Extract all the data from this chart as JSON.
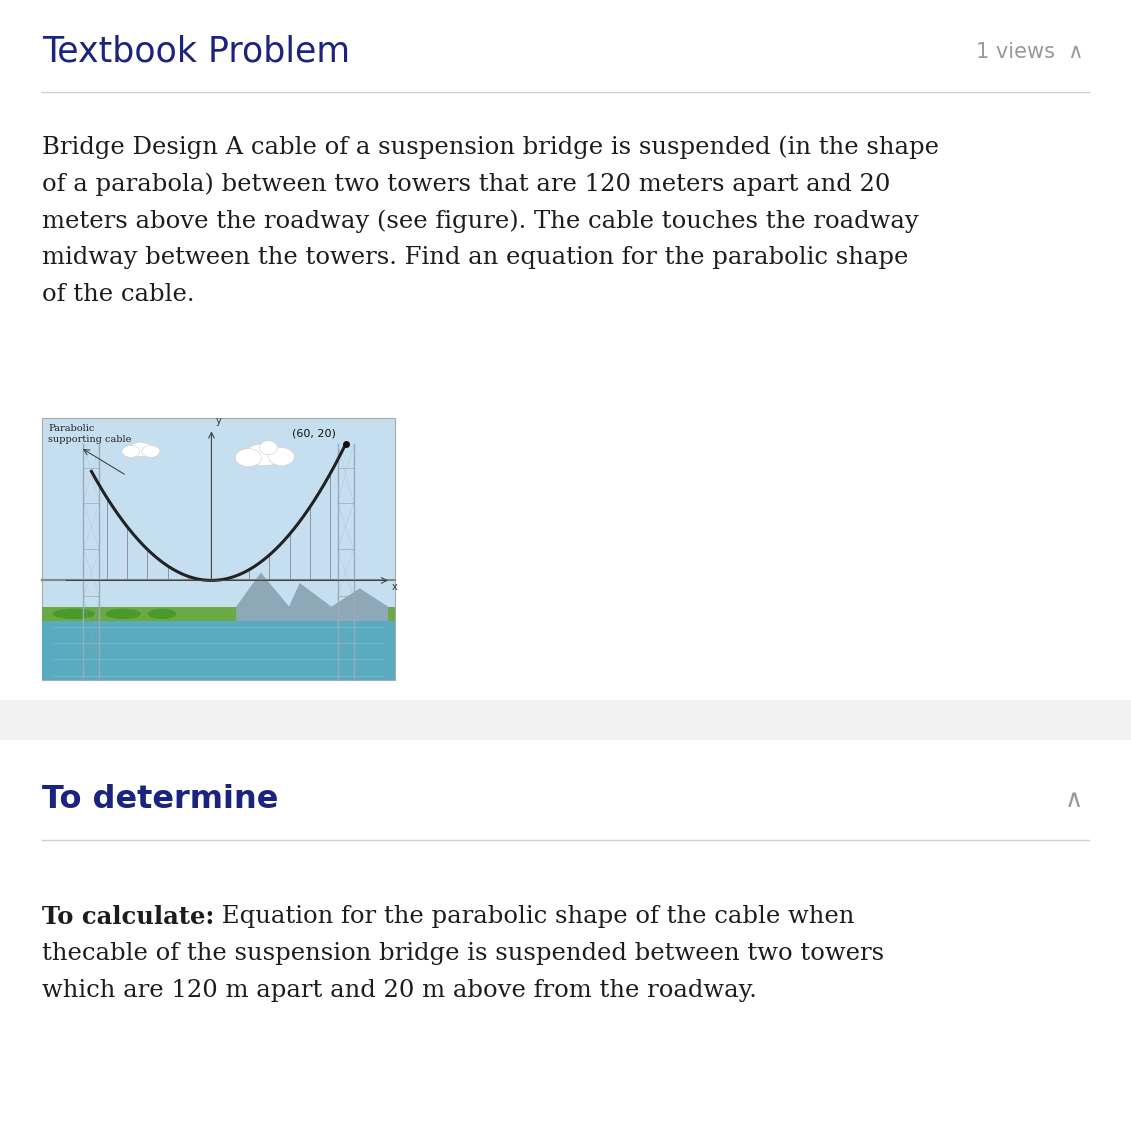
{
  "title": "Textbook Problem",
  "views_text": "1 views  ∧",
  "body_lines": [
    "Bridge Design A cable of a suspension bridge is suspended (in the shape",
    "of a parabola) between two towers that are 120 meters apart and 20",
    "meters above the roadway (see figure). The cable touches the roadway",
    "midway between the towers. Find an equation for the parabolic shape",
    "of the cable."
  ],
  "section2_heading": "To determine",
  "section2_caret": "∧",
  "section2_bold": "To calculate:",
  "section2_normal_lines": [
    " Equation for the parabolic shape of the cable when",
    "thecable of the suspension bridge is suspended between two towers",
    "which are 120 m apart and 20 m above from the roadway."
  ],
  "figure_label_line1": "Parabolic",
  "figure_label_line2": "supporting cable",
  "figure_point_label": "(60, 20)",
  "bg_color": "#ffffff",
  "gray_band_color": "#f2f2f2",
  "title_color": "#1a237e",
  "body_text_color": "#1c1c1c",
  "heading2_color": "#1a237e",
  "divider_color": "#d0d0d0",
  "views_color": "#999999",
  "title_fontsize": 25,
  "views_fontsize": 15,
  "body_fontsize": 17.5,
  "heading2_fontsize": 23,
  "fig_label_fontsize": 7,
  "fig_point_fontsize": 8,
  "sky_color": "#c5dff0",
  "water_color_top": "#5aabbf",
  "water_color_bot": "#3d8fa8",
  "mountain_color": "#8fa8b8",
  "land_color": "#6aaa45",
  "tower_color": "#9baab8",
  "cable_color": "#222222",
  "road_color": "#d0d0c0"
}
